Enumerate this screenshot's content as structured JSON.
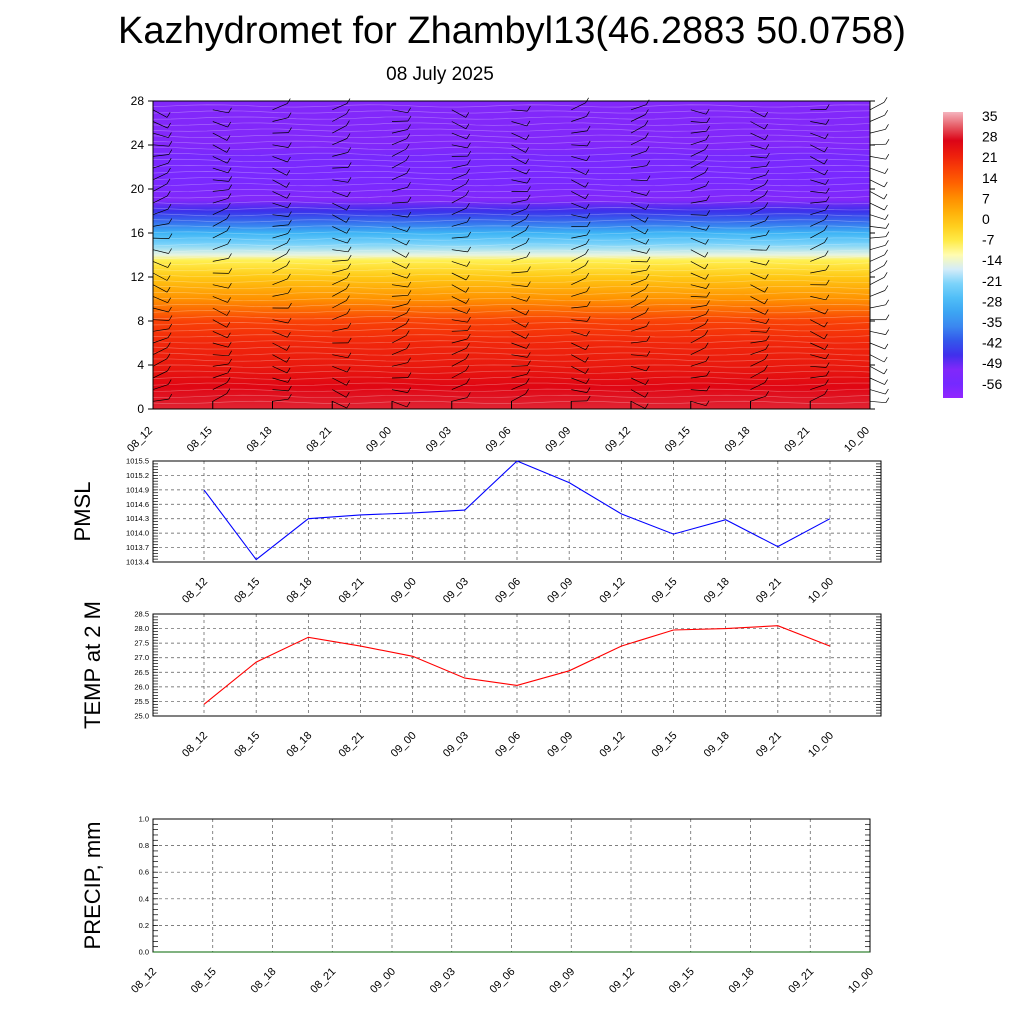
{
  "title": "Kazhydromet for Zhambyl13(46.2883 50.0758)",
  "subtitle": "08 July 2025",
  "colors": {
    "pmsl_line": "#0000ff",
    "temp_line": "#ff0000",
    "precip_line": "#006400",
    "grid": "#555555"
  },
  "chart_data": [
    {
      "type": "heatmap",
      "name": "vertical-temperature-wind-section",
      "x_ticks": [
        "08_12",
        "08_15",
        "08_18",
        "08_21",
        "09_00",
        "09_03",
        "09_06",
        "09_09",
        "09_12",
        "09_15",
        "09_18",
        "09_21",
        "10_00"
      ],
      "y_ticks": [
        "0",
        "4",
        "8",
        "12",
        "16",
        "20",
        "24",
        "28"
      ],
      "ylim": [
        0,
        28
      ],
      "colorbar_labels": [
        "35",
        "28",
        "21",
        "14",
        "7",
        "0",
        "-7",
        "-14",
        "-21",
        "-28",
        "-35",
        "-42",
        "-49",
        "-56"
      ],
      "colorbar_range": [
        -60,
        38
      ],
      "vertical_profile": [
        {
          "level": 0,
          "value": 30
        },
        {
          "level": 2,
          "value": 27
        },
        {
          "level": 4,
          "value": 24
        },
        {
          "level": 6,
          "value": 22
        },
        {
          "level": 8,
          "value": 18
        },
        {
          "level": 10,
          "value": 8
        },
        {
          "level": 12,
          "value": 0
        },
        {
          "level": 13.5,
          "value": -7
        },
        {
          "level": 14,
          "value": -14
        },
        {
          "level": 15,
          "value": -21
        },
        {
          "level": 16,
          "value": -28
        },
        {
          "level": 17,
          "value": -38
        },
        {
          "level": 18,
          "value": -45
        },
        {
          "level": 19,
          "value": -50
        },
        {
          "level": 20.5,
          "value": -56
        },
        {
          "level": 22,
          "value": -56
        },
        {
          "level": 23,
          "value": -52
        },
        {
          "level": 24,
          "value": -50
        },
        {
          "level": 28,
          "value": -50
        }
      ]
    },
    {
      "type": "line",
      "name": "pmsl",
      "ylabel": "PMSL",
      "categories": [
        "08_12",
        "08_15",
        "08_18",
        "08_21",
        "09_00",
        "09_03",
        "09_06",
        "09_09",
        "09_12",
        "09_15",
        "09_18",
        "09_21",
        "10_00"
      ],
      "series": [
        {
          "values": [
            1014.9,
            1013.45,
            1014.3,
            1014.38,
            1014.42,
            1014.48,
            1015.5,
            1015.05,
            1014.4,
            1013.98,
            1014.28,
            1013.72,
            1014.3
          ]
        }
      ],
      "y_ticks": [
        "1013.4",
        "1013.7",
        "1014.0",
        "1014.3",
        "1014.6",
        "1014.9",
        "1015.2",
        "1015.5"
      ],
      "ylim": [
        1013.4,
        1015.5
      ],
      "grid": true
    },
    {
      "type": "line",
      "name": "temperature-2m",
      "ylabel": "TEMP at 2 M",
      "categories": [
        "08_12",
        "08_15",
        "08_18",
        "08_21",
        "09_00",
        "09_03",
        "09_06",
        "09_09",
        "09_12",
        "09_15",
        "09_18",
        "09_21",
        "10_00"
      ],
      "series": [
        {
          "values": [
            25.4,
            26.85,
            27.7,
            27.4,
            27.05,
            26.3,
            26.05,
            26.55,
            27.4,
            27.95,
            28.0,
            28.1,
            27.4
          ]
        }
      ],
      "y_ticks": [
        "25.0",
        "25.5",
        "26.0",
        "26.5",
        "27.0",
        "27.5",
        "28.0",
        "28.5"
      ],
      "ylim": [
        25.0,
        28.5
      ],
      "grid": true
    },
    {
      "type": "line",
      "name": "precipitation",
      "ylabel": "PRECIP, mm",
      "categories": [
        "08_12",
        "08_15",
        "08_18",
        "08_21",
        "09_00",
        "09_03",
        "09_06",
        "09_09",
        "09_12",
        "09_15",
        "09_18",
        "09_21",
        "10_00"
      ],
      "series": [
        {
          "values": [
            0,
            0,
            0,
            0,
            0,
            0,
            0,
            0,
            0,
            0,
            0,
            0,
            0
          ]
        }
      ],
      "y_ticks": [
        "0.0",
        "0.2",
        "0.4",
        "0.6",
        "0.8",
        "1.0"
      ],
      "ylim": [
        0,
        1
      ],
      "grid": true
    }
  ]
}
